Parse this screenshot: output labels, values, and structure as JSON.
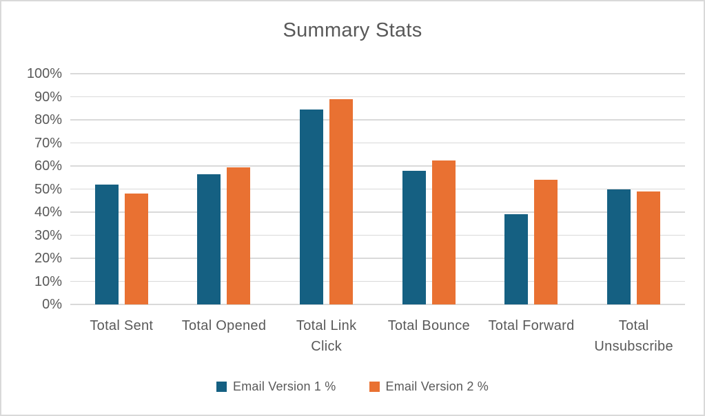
{
  "chart_data": {
    "type": "bar",
    "title": "Summary Stats",
    "categories": [
      "Total Sent",
      "Total Opened",
      "Total Link Click",
      "Total Bounce",
      "Total Forward",
      "Total Unsubscribe"
    ],
    "series": [
      {
        "name": "Email Version 1 %",
        "color": "#156082",
        "values": [
          52,
          56.5,
          84.5,
          58,
          39,
          50
        ]
      },
      {
        "name": "Email Version 2 %",
        "color": "#E97132",
        "values": [
          48,
          59.5,
          89,
          62.5,
          54,
          49
        ]
      }
    ],
    "xlabel": "",
    "ylabel": "",
    "ylim": [
      0,
      100
    ],
    "y_tick_step": 10,
    "y_tick_labels": [
      "0%",
      "10%",
      "20%",
      "30%",
      "40%",
      "50%",
      "60%",
      "70%",
      "80%",
      "90%",
      "100%"
    ],
    "grid": true,
    "legend_position": "bottom"
  },
  "colors": {
    "text": "#595959",
    "gridline": "#D9D9D9",
    "frame_border": "#D9D9D9",
    "background": "#FFFFFF"
  }
}
